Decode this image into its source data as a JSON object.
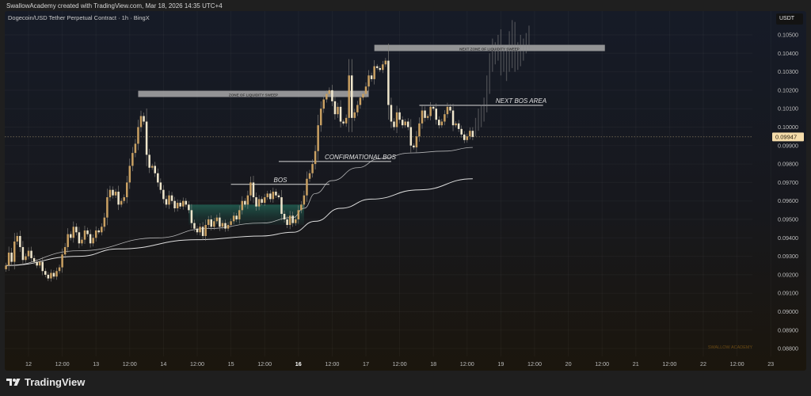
{
  "header": {
    "credit": "SwallowAcademy created with TradingView.com, Mar 18, 2026 14:35 UTC+4"
  },
  "legend": {
    "symbol": "Dogecoin/USD Tether Perpetual Contract · 1h · BingX"
  },
  "currency": "USDT",
  "watermark": "SWALLOW ACADEMY",
  "footer": {
    "brand": "TradingView",
    "logo_icon": "tradingview-logo-icon"
  },
  "colors": {
    "bull": "#c9a062",
    "bear": "#efe6cc",
    "ma": "#e8e8e8",
    "zone": "#a9a9a9",
    "demand": "#1f5a4b",
    "last_price_badge": "#f5dcaa",
    "watermark": "#6b4a14"
  },
  "chart_data": {
    "type": "candlestick",
    "title": "Dogecoin/USD Tether Perpetual Contract · 1h · BingX",
    "interval": "1h",
    "ylabel": "USDT",
    "ylim": [
      0.0875,
      0.106
    ],
    "grid": true,
    "y_ticks": [
      "0.10500",
      "0.10400",
      "0.10300",
      "0.10200",
      "0.10100",
      "0.10000",
      "0.09900",
      "0.09800",
      "0.09700",
      "0.09600",
      "0.09500",
      "0.09400",
      "0.09300",
      "0.09200",
      "0.09100",
      "0.09000",
      "0.08900",
      "0.08800"
    ],
    "x_ticks": [
      {
        "label": "12",
        "time": "2026-03-12 00:00"
      },
      {
        "label": "12:00",
        "time": "2026-03-12 12:00"
      },
      {
        "label": "13",
        "time": "2026-03-13 00:00"
      },
      {
        "label": "12:00",
        "time": "2026-03-13 12:00"
      },
      {
        "label": "14",
        "time": "2026-03-14 00:00"
      },
      {
        "label": "12:00",
        "time": "2026-03-14 12:00"
      },
      {
        "label": "15",
        "time": "2026-03-15 00:00"
      },
      {
        "label": "12:00",
        "time": "2026-03-15 12:00"
      },
      {
        "label": "16",
        "time": "2026-03-16 00:00"
      },
      {
        "label": "12:00",
        "time": "2026-03-16 12:00"
      },
      {
        "label": "17",
        "time": "2026-03-17 00:00"
      },
      {
        "label": "12:00",
        "time": "2026-03-17 12:00"
      },
      {
        "label": "18",
        "time": "2026-03-18 00:00"
      },
      {
        "label": "12:00",
        "time": "2026-03-18 12:00"
      },
      {
        "label": "19",
        "time": "2026-03-19 00:00"
      },
      {
        "label": "12:00",
        "time": "2026-03-19 12:00"
      },
      {
        "label": "20",
        "time": "2026-03-20 00:00"
      },
      {
        "label": "12:00",
        "time": "2026-03-20 12:00"
      },
      {
        "label": "21",
        "time": "2026-03-21 00:00"
      },
      {
        "label": "12:00",
        "time": "2026-03-21 12:00"
      },
      {
        "label": "22",
        "time": "2026-03-22 00:00"
      },
      {
        "label": "12:00",
        "time": "2026-03-22 12:00"
      },
      {
        "label": "23",
        "time": "2026-03-23 00:00"
      }
    ],
    "last_price": "0.09947",
    "closes_by_day": {
      "2026-03-11 16:00": [
        0.0925,
        0.0932,
        0.0927,
        0.0938,
        0.0941,
        0.0935,
        0.0928,
        0.093
      ],
      "2026-03-12 00:00": [
        0.0933,
        0.0929,
        0.0927,
        0.0925,
        0.0927,
        0.0922,
        0.092,
        0.0918,
        0.0921,
        0.0919,
        0.0922,
        0.0924,
        0.0931,
        0.0935,
        0.0942,
        0.094,
        0.0946,
        0.0943,
        0.0937,
        0.0939,
        0.0944,
        0.0942,
        0.0937,
        0.094
      ],
      "2026-03-13 00:00": [
        0.0944,
        0.0943,
        0.0946,
        0.0951,
        0.0962,
        0.0966,
        0.0963,
        0.0965,
        0.0958,
        0.096,
        0.0962,
        0.097,
        0.0979,
        0.0986,
        0.0991,
        0.1,
        0.1006,
        0.1003,
        0.0985,
        0.0978,
        0.0979,
        0.0975,
        0.097,
        0.0966
      ],
      "2026-03-14 00:00": [
        0.0961,
        0.0958,
        0.0963,
        0.096,
        0.0956,
        0.0959,
        0.0957,
        0.096,
        0.0958,
        0.0955,
        0.0948,
        0.0945,
        0.0943,
        0.0946,
        0.0941,
        0.0947,
        0.095,
        0.0946,
        0.0949,
        0.0951,
        0.0946,
        0.0948,
        0.0945,
        0.0947
      ],
      "2026-03-15 00:00": [
        0.0949,
        0.0952,
        0.095,
        0.0955,
        0.096,
        0.0958,
        0.0963,
        0.097,
        0.0962,
        0.0957,
        0.0961,
        0.0959,
        0.0962,
        0.0964,
        0.0961,
        0.0965,
        0.0963,
        0.0962,
        0.0953,
        0.095,
        0.0947,
        0.0952,
        0.0948,
        0.095
      ],
      "2026-03-16 00:00": [
        0.0955,
        0.0958,
        0.0963,
        0.0972,
        0.0975,
        0.098,
        0.0987,
        0.1001,
        0.101,
        0.1015,
        0.1018,
        0.102,
        0.1014,
        0.1007,
        0.1011,
        0.1003,
        0.1002,
        0.1005,
        0.1028,
        0.1005,
        0.1008,
        0.1012,
        0.1016,
        0.1018
      ],
      "2026-03-17 00:00": [
        0.1022,
        0.1028,
        0.1026,
        0.1033,
        0.1032,
        0.1031,
        0.1034,
        0.1036,
        0.1012,
        0.1003,
        0.1,
        0.1008,
        0.1004,
        0.1001,
        0.1003,
        0.1,
        0.099,
        0.0989,
        0.0995,
        0.1002,
        0.1009,
        0.1005,
        0.1006,
        0.1011
      ],
      "2026-03-18 00:00": [
        0.101,
        0.1004,
        0.1001,
        0.1003,
        0.1007,
        0.1011,
        0.1009,
        0.1001,
        0.1002,
        0.0999,
        0.0996,
        0.0993,
        0.0995,
        0.0998,
        0.09947
      ]
    },
    "moving_averages": [
      {
        "points": [
          [
            "2026-03-11 16:00",
            0.0925
          ],
          [
            "2026-03-12 18:00",
            0.0933
          ],
          [
            "2026-03-13 22:00",
            0.094
          ],
          [
            "2026-03-14 15:00",
            0.0945
          ],
          [
            "2026-03-15 11:00",
            0.0948
          ],
          [
            "2026-03-15 22:00",
            0.0951
          ],
          [
            "2026-03-16 02:00",
            0.0956
          ],
          [
            "2026-03-16 06:00",
            0.0964
          ],
          [
            "2026-03-16 12:00",
            0.0971
          ],
          [
            "2026-03-16 21:00",
            0.0978
          ],
          [
            "2026-03-17 05:00",
            0.0983
          ],
          [
            "2026-03-17 16:00",
            0.0986
          ],
          [
            "2026-03-18 04:00",
            0.0987
          ],
          [
            "2026-03-18 14:00",
            0.0989
          ]
        ]
      },
      {
        "points": [
          [
            "2026-03-11 16:00",
            0.0925
          ],
          [
            "2026-03-12 18:00",
            0.093
          ],
          [
            "2026-03-13 08:00",
            0.0934
          ],
          [
            "2026-03-14 12:00",
            0.0939
          ],
          [
            "2026-03-15 11:00",
            0.0941
          ],
          [
            "2026-03-15 22:00",
            0.0943
          ],
          [
            "2026-03-16 06:00",
            0.0949
          ],
          [
            "2026-03-16 15:00",
            0.0956
          ],
          [
            "2026-03-17 02:00",
            0.0961
          ],
          [
            "2026-03-17 19:00",
            0.0966
          ],
          [
            "2026-03-18 14:00",
            0.0972
          ]
        ]
      }
    ],
    "projection_bars": [
      [
        "2026-03-18 15:00",
        0.1005,
        0.0995
      ],
      [
        "2026-03-18 16:00",
        0.101,
        0.0998
      ],
      [
        "2026-03-18 17:00",
        0.1012,
        0.1
      ],
      [
        "2026-03-18 18:00",
        0.1016,
        0.1003
      ],
      [
        "2026-03-18 19:00",
        0.1028,
        0.1008
      ],
      [
        "2026-03-18 20:00",
        0.104,
        0.1018
      ],
      [
        "2026-03-18 21:00",
        0.1048,
        0.103
      ],
      [
        "2026-03-18 22:00",
        0.1046,
        0.1034
      ],
      [
        "2026-03-18 23:00",
        0.105,
        0.1036
      ],
      [
        "2026-03-19 00:00",
        0.1053,
        0.1028
      ],
      [
        "2026-03-19 01:00",
        0.1044,
        0.103
      ],
      [
        "2026-03-19 02:00",
        0.1042,
        0.1025
      ],
      [
        "2026-03-19 03:00",
        0.1052,
        0.103
      ],
      [
        "2026-03-19 04:00",
        0.1058,
        0.1032
      ],
      [
        "2026-03-19 05:00",
        0.1057,
        0.103
      ],
      [
        "2026-03-19 06:00",
        0.1046,
        0.1031
      ],
      [
        "2026-03-19 07:00",
        0.105,
        0.1033
      ],
      [
        "2026-03-19 08:00",
        0.1048,
        0.1036
      ],
      [
        "2026-03-19 09:00",
        0.1051,
        0.104
      ],
      [
        "2026-03-19 10:00",
        0.1055,
        0.1042
      ]
    ],
    "annotations": {
      "zone_sweep": {
        "label": "ZONE OF LIQUIDITY SWEEP",
        "from": "2026-03-13 15:00",
        "to": "2026-03-17 01:00",
        "top": 0.10197,
        "bottom": 0.10163
      },
      "next_zone_sweep": {
        "label": "NEXT ZONE OF LIQUIDITY SWEEP",
        "from": "2026-03-17 03:00",
        "to": "2026-03-20 13:00",
        "top": 0.10446,
        "bottom": 0.10412
      },
      "bos": {
        "label": "BOS",
        "from": "2026-03-15 00:00",
        "to": "2026-03-16 11:00",
        "price": 0.0969
      },
      "confirmational_bos": {
        "label": "CONFIRMATIONAL BOS",
        "from": "2026-03-15 17:00",
        "to": "2026-03-17 09:00",
        "price": 0.09814
      },
      "next_bos_area": {
        "label": "NEXT BOS AREA",
        "from": "2026-03-17 19:00",
        "to": "2026-03-19 15:00",
        "price": 0.10118
      },
      "demand_zone": {
        "from": "2026-03-14 09:00",
        "to": "2026-03-16 02:00",
        "top": 0.0958,
        "bottom": 0.0947
      }
    }
  }
}
